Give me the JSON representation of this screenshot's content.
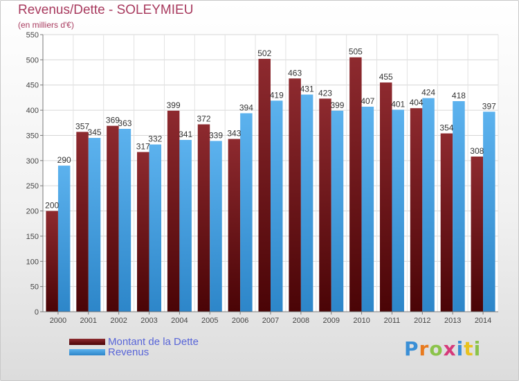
{
  "title": "Revenus/Dette - SOLEYMIEU",
  "subtitle": "(en milliers d'€)",
  "logo": {
    "letters": [
      "P",
      "r",
      "o",
      "x",
      "i",
      "t",
      "i"
    ],
    "colors": [
      "#3a8fd6",
      "#e87a1e",
      "#8bc34a",
      "#d63a7a",
      "#3a8fd6",
      "#e8c21e",
      "#8bc34a"
    ]
  },
  "colors": {
    "dette": "#7a1e22",
    "revenus": "#4aa3e4",
    "title": "#a83a5e",
    "legend_text": "#5865d8"
  },
  "chart_data": {
    "type": "bar",
    "categories": [
      "2000",
      "2001",
      "2002",
      "2003",
      "2004",
      "2005",
      "2006",
      "2007",
      "2008",
      "2009",
      "2010",
      "2011",
      "2012",
      "2013",
      "2014"
    ],
    "series": [
      {
        "name": "Montant de la Dette",
        "values": [
          200,
          357,
          369,
          317,
          399,
          372,
          343,
          502,
          463,
          423,
          505,
          455,
          404,
          354,
          308
        ]
      },
      {
        "name": "Revenus",
        "values": [
          290,
          345,
          363,
          332,
          341,
          339,
          394,
          419,
          431,
          399,
          407,
          401,
          424,
          418,
          397
        ]
      }
    ],
    "yticks": [
      0,
      50,
      100,
      150,
      200,
      250,
      300,
      350,
      400,
      450,
      500,
      550
    ],
    "ylim": [
      0,
      550
    ],
    "grid": true,
    "legend_position": "bottom-left"
  }
}
